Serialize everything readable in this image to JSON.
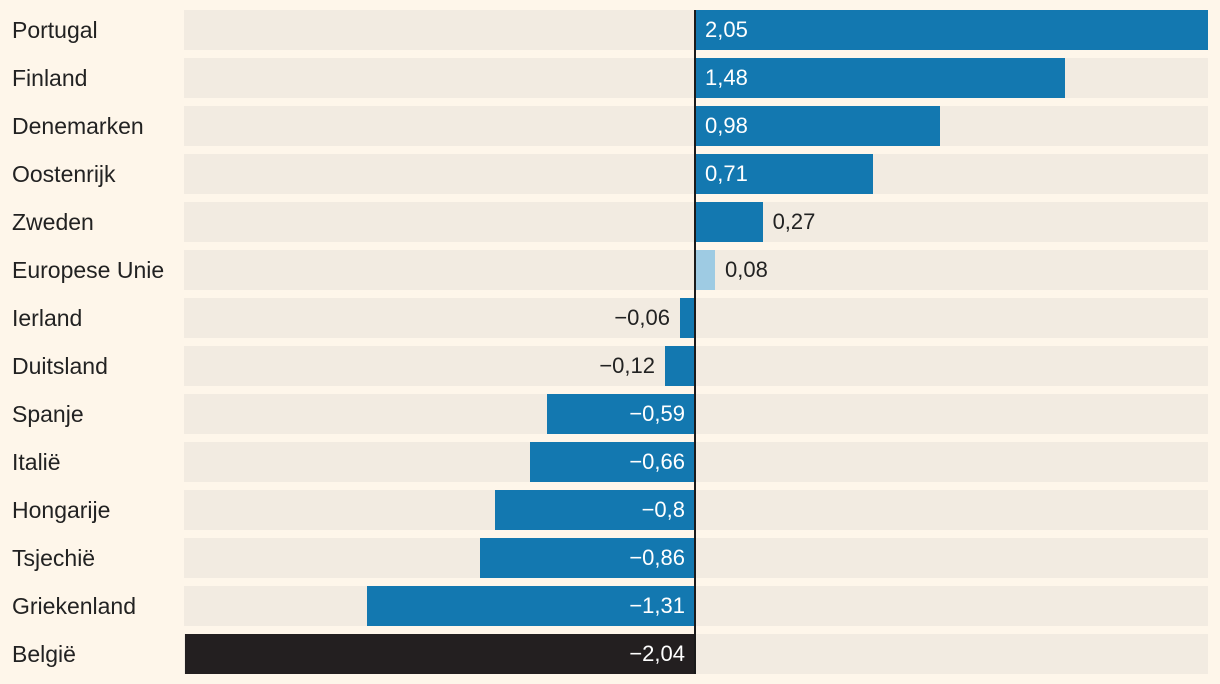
{
  "chart_data": {
    "type": "bar",
    "orientation": "horizontal",
    "xlim": [
      -2.05,
      2.05
    ],
    "colors": {
      "default": "#1378b0",
      "highlight_eu": "#9ecbe3",
      "highlight_belgium": "#231f20",
      "track": "#f2ebe1",
      "background": "#fef6ea"
    },
    "bars": [
      {
        "category": "Portugal",
        "value": 2.05,
        "label": "2,05",
        "style": "default"
      },
      {
        "category": "Finland",
        "value": 1.48,
        "label": "1,48",
        "style": "default"
      },
      {
        "category": "Denemarken",
        "value": 0.98,
        "label": "0,98",
        "style": "default"
      },
      {
        "category": "Oostenrijk",
        "value": 0.71,
        "label": "0,71",
        "style": "default"
      },
      {
        "category": "Zweden",
        "value": 0.27,
        "label": "0,27",
        "style": "default"
      },
      {
        "category": "Europese Unie",
        "value": 0.08,
        "label": "0,08",
        "style": "highlight_eu"
      },
      {
        "category": "Ierland",
        "value": -0.06,
        "label": "−0,06",
        "style": "default"
      },
      {
        "category": "Duitsland",
        "value": -0.12,
        "label": "−0,12",
        "style": "default"
      },
      {
        "category": "Spanje",
        "value": -0.59,
        "label": "−0,59",
        "style": "default"
      },
      {
        "category": "Italië",
        "value": -0.66,
        "label": "−0,66",
        "style": "default"
      },
      {
        "category": "Hongarije",
        "value": -0.8,
        "label": "−0,8",
        "style": "default"
      },
      {
        "category": "Tsjechië",
        "value": -0.86,
        "label": "−0,86",
        "style": "default"
      },
      {
        "category": "Griekenland",
        "value": -1.31,
        "label": "−1,31",
        "style": "default"
      },
      {
        "category": "België",
        "value": -2.04,
        "label": "−2,04",
        "style": "highlight_belgium"
      }
    ]
  }
}
